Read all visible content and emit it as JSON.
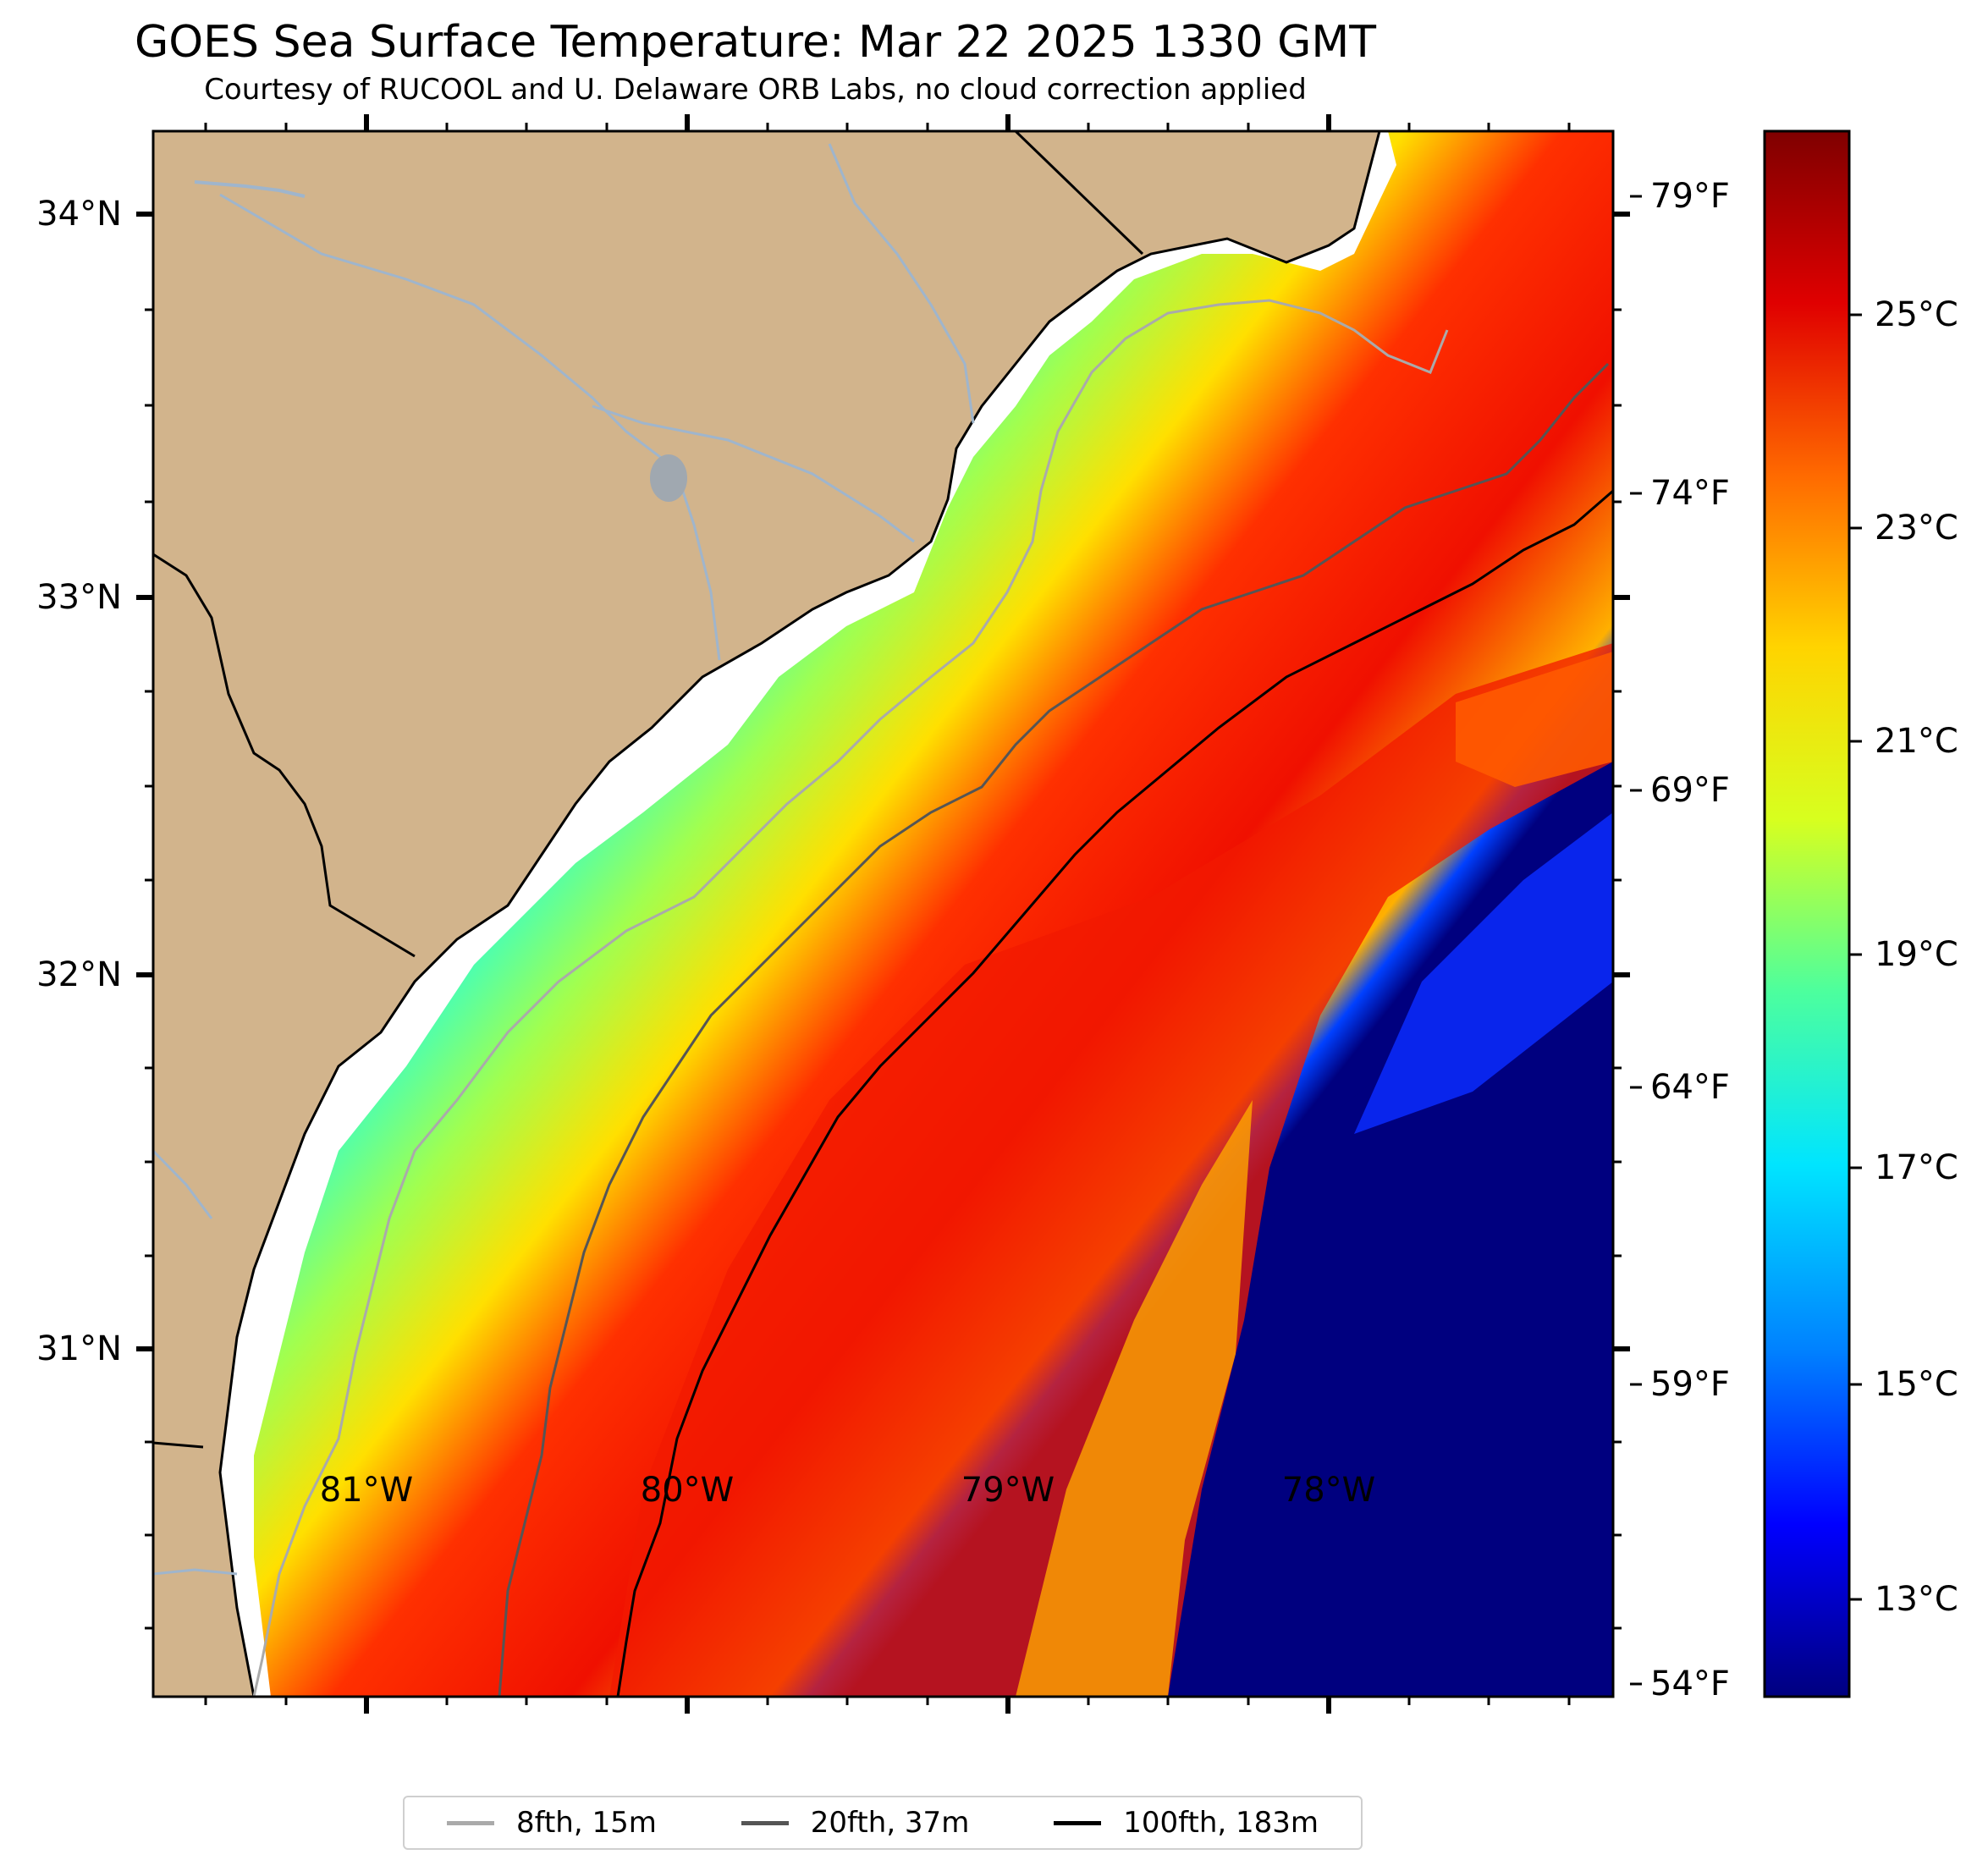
{
  "title": "GOES Sea Surface Temperature: Mar 22 2025 1330 GMT",
  "subtitle": "Courtesy of RUCOOL and U. Delaware ORB Labs, no cloud correction applied",
  "lat_labels": [
    "34°N",
    "33°N",
    "32°N",
    "31°N"
  ],
  "lon_labels": [
    "81°W",
    "80°W",
    "79°W",
    "78°W"
  ],
  "fahrenheit_labels": [
    "79°F",
    "74°F",
    "69°F",
    "64°F",
    "59°F",
    "54°F"
  ],
  "celsius_labels": [
    "25°C",
    "23°C",
    "21°C",
    "19°C",
    "17°C",
    "15°C",
    "13°C"
  ],
  "colorbar_colors": [
    "#00007f",
    "#0000ff",
    "#0080ff",
    "#00e5ff",
    "#4cff9e",
    "#d7ff1f",
    "#ffd400",
    "#ff6a00",
    "#e00000",
    "#7f0000"
  ],
  "land_color": "#d2b48c",
  "legend": [
    {
      "label": "8fth, 15m",
      "color": "#aaaaaa"
    },
    {
      "label": "20fth, 37m",
      "color": "#555555"
    },
    {
      "label": "100fth, 183m",
      "color": "#000000"
    }
  ]
}
